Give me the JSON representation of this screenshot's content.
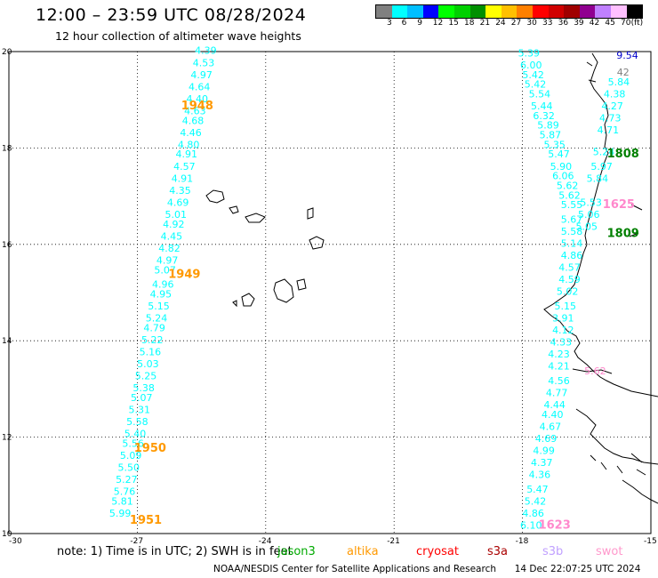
{
  "header": {
    "title": "12:00 – 23:59 UTC 08/28/2024",
    "subtitle": "12 hour collection of altimeter wave heights"
  },
  "legend": {
    "colors": [
      "#808080",
      "#00ffff",
      "#00bfff",
      "#0000ff",
      "#00ff00",
      "#00d000",
      "#009000",
      "#ffff00",
      "#ffc000",
      "#ff8000",
      "#ff0000",
      "#d00000",
      "#a00000",
      "#900090",
      "#c080ff",
      "#ffc0ff",
      "#000000"
    ],
    "labels": [
      "3",
      "6",
      "9",
      "12",
      "15",
      "18",
      "21",
      "24",
      "27",
      "30",
      "33",
      "36",
      "39",
      "42",
      "45",
      "70",
      "(ft)"
    ]
  },
  "axes": {
    "x_ticks": [
      "-30",
      "-27",
      "-24",
      "-21",
      "-18",
      "-15"
    ],
    "y_ticks": [
      "20",
      "18",
      "16",
      "14",
      "12",
      "10"
    ]
  },
  "map_data": {
    "lon_range": [
      -30,
      -15
    ],
    "lat_range": [
      10,
      20
    ],
    "tracks": [
      {
        "color": "#00ffff",
        "times": [
          {
            "label": "1948",
            "lon": -25.6,
            "lat": 18.8,
            "color": "#ff9900"
          },
          {
            "label": "1949",
            "lon": -25.9,
            "lat": 15.3,
            "color": "#ff9900"
          },
          {
            "label": "1950",
            "lon": -26.7,
            "lat": 11.7,
            "color": "#ff9900"
          },
          {
            "label": "1951",
            "lon": -26.8,
            "lat": 10.2,
            "color": "#ff9900"
          }
        ],
        "points": [
          {
            "v": "4.39",
            "lon": -25.4,
            "lat": 19.95
          },
          {
            "v": "4.53",
            "lon": -25.45,
            "lat": 19.7
          },
          {
            "v": "4.97",
            "lon": -25.5,
            "lat": 19.45
          },
          {
            "v": "4.64",
            "lon": -25.55,
            "lat": 19.2
          },
          {
            "v": "4.40",
            "lon": -25.6,
            "lat": 18.95
          },
          {
            "v": "4.63",
            "lon": -25.65,
            "lat": 18.7
          },
          {
            "v": "4.68",
            "lon": -25.7,
            "lat": 18.5
          },
          {
            "v": "4.46",
            "lon": -25.75,
            "lat": 18.25
          },
          {
            "v": "4.80",
            "lon": -25.8,
            "lat": 18.0
          },
          {
            "v": "4.91",
            "lon": -25.85,
            "lat": 17.8
          },
          {
            "v": "4.57",
            "lon": -25.9,
            "lat": 17.55
          },
          {
            "v": "4.91",
            "lon": -25.95,
            "lat": 17.3
          },
          {
            "v": "4.35",
            "lon": -26.0,
            "lat": 17.05
          },
          {
            "v": "4.69",
            "lon": -26.05,
            "lat": 16.8
          },
          {
            "v": "5.01",
            "lon": -26.1,
            "lat": 16.55
          },
          {
            "v": "4.92",
            "lon": -26.15,
            "lat": 16.35
          },
          {
            "v": "4.45",
            "lon": -26.2,
            "lat": 16.1
          },
          {
            "v": "4.82",
            "lon": -26.25,
            "lat": 15.85
          },
          {
            "v": "4.97",
            "lon": -26.3,
            "lat": 15.6
          },
          {
            "v": "5.07",
            "lon": -26.35,
            "lat": 15.4
          },
          {
            "v": "4.96",
            "lon": -26.4,
            "lat": 15.1
          },
          {
            "v": "4.95",
            "lon": -26.45,
            "lat": 14.9
          },
          {
            "v": "5.15",
            "lon": -26.5,
            "lat": 14.65
          },
          {
            "v": "5.24",
            "lon": -26.55,
            "lat": 14.4
          },
          {
            "v": "4.79",
            "lon": -26.6,
            "lat": 14.2
          },
          {
            "v": "5.22",
            "lon": -26.65,
            "lat": 13.95
          },
          {
            "v": "5.16",
            "lon": -26.7,
            "lat": 13.7
          },
          {
            "v": "5.03",
            "lon": -26.75,
            "lat": 13.45
          },
          {
            "v": "5.25",
            "lon": -26.8,
            "lat": 13.2
          },
          {
            "v": "5.38",
            "lon": -26.85,
            "lat": 12.95
          },
          {
            "v": "5.07",
            "lon": -26.9,
            "lat": 12.75
          },
          {
            "v": "5.31",
            "lon": -26.95,
            "lat": 12.5
          },
          {
            "v": "5.58",
            "lon": -27.0,
            "lat": 12.25
          },
          {
            "v": "5.40",
            "lon": -27.05,
            "lat": 12.0
          },
          {
            "v": "5.56",
            "lon": -27.1,
            "lat": 11.8
          },
          {
            "v": "5.09",
            "lon": -27.15,
            "lat": 11.55
          },
          {
            "v": "5.50",
            "lon": -27.2,
            "lat": 11.3
          },
          {
            "v": "5.27",
            "lon": -27.25,
            "lat": 11.05
          },
          {
            "v": "5.76",
            "lon": -27.3,
            "lat": 10.8
          },
          {
            "v": "5.81",
            "lon": -27.35,
            "lat": 10.6
          },
          {
            "v": "5.99",
            "lon": -27.4,
            "lat": 10.35
          }
        ]
      },
      {
        "color": "#00ffff",
        "times": [
          {
            "label": "1808",
            "lon": -15.65,
            "lat": 17.8,
            "color": "#008000"
          },
          {
            "label": "1809",
            "lon": -15.65,
            "lat": 16.15,
            "color": "#008000"
          }
        ],
        "points": [
          {
            "v": "9.54",
            "lon": -15.55,
            "lat": 19.85,
            "color": "#0000cc"
          },
          {
            "v": "42",
            "lon": -15.65,
            "lat": 19.5,
            "color": "#808080"
          },
          {
            "v": "5.84",
            "lon": -15.75,
            "lat": 19.3
          },
          {
            "v": "4.38",
            "lon": -15.85,
            "lat": 19.05
          },
          {
            "v": "4.27",
            "lon": -15.9,
            "lat": 18.8
          },
          {
            "v": "4.73",
            "lon": -15.95,
            "lat": 18.55
          },
          {
            "v": "4.71",
            "lon": -16.0,
            "lat": 18.3
          },
          {
            "v": "5.24",
            "lon": -16.1,
            "lat": 17.85
          },
          {
            "v": "5.97",
            "lon": -16.15,
            "lat": 17.55
          },
          {
            "v": "5.84",
            "lon": -16.25,
            "lat": 17.3
          },
          {
            "v": "5.53",
            "lon": -16.4,
            "lat": 16.8
          },
          {
            "v": "5.06",
            "lon": -16.45,
            "lat": 16.55
          },
          {
            "v": "5.05",
            "lon": -16.5,
            "lat": 16.3
          },
          {
            "v": "5.39",
            "lon": -17.85,
            "lat": 19.9
          },
          {
            "v": "6.00",
            "lon": -17.8,
            "lat": 19.65
          },
          {
            "v": "5.42",
            "lon": -17.75,
            "lat": 19.45
          },
          {
            "v": "5.42",
            "lon": -17.7,
            "lat": 19.25
          },
          {
            "v": "5.54",
            "lon": -17.6,
            "lat": 19.05
          },
          {
            "v": "5.44",
            "lon": -17.55,
            "lat": 18.8
          },
          {
            "v": "6.32",
            "lon": -17.5,
            "lat": 18.6
          },
          {
            "v": "5.89",
            "lon": -17.4,
            "lat": 18.4
          },
          {
            "v": "5.87",
            "lon": -17.35,
            "lat": 18.2
          },
          {
            "v": "5.35",
            "lon": -17.25,
            "lat": 18.0
          },
          {
            "v": "5.47",
            "lon": -17.15,
            "lat": 17.8
          },
          {
            "v": "5.90",
            "lon": -17.1,
            "lat": 17.55
          },
          {
            "v": "6.06",
            "lon": -17.05,
            "lat": 17.35
          },
          {
            "v": "5.62",
            "lon": -16.95,
            "lat": 17.15
          },
          {
            "v": "5.62",
            "lon": -16.9,
            "lat": 16.95
          },
          {
            "v": "5.55",
            "lon": -16.85,
            "lat": 16.75
          },
          {
            "v": "5.67",
            "lon": -16.85,
            "lat": 16.45
          },
          {
            "v": "5.58",
            "lon": -16.85,
            "lat": 16.2
          },
          {
            "v": "5.14",
            "lon": -16.85,
            "lat": 15.95
          },
          {
            "v": "4.86",
            "lon": -16.85,
            "lat": 15.7
          },
          {
            "v": "4.57",
            "lon": -16.9,
            "lat": 15.45
          },
          {
            "v": "4.59",
            "lon": -16.9,
            "lat": 15.2
          },
          {
            "v": "5.02",
            "lon": -16.95,
            "lat": 14.95
          },
          {
            "v": "5.15",
            "lon": -17.0,
            "lat": 14.65
          },
          {
            "v": "3.91",
            "lon": -17.05,
            "lat": 14.4
          },
          {
            "v": "4.12",
            "lon": -17.05,
            "lat": 14.15
          },
          {
            "v": "4.33",
            "lon": -17.1,
            "lat": 13.9
          },
          {
            "v": "4.23",
            "lon": -17.15,
            "lat": 13.65
          },
          {
            "v": "4.21",
            "lon": -17.15,
            "lat": 13.4
          },
          {
            "v": "4.56",
            "lon": -17.15,
            "lat": 13.1
          },
          {
            "v": "4.77",
            "lon": -17.2,
            "lat": 12.85
          },
          {
            "v": "4.44",
            "lon": -17.25,
            "lat": 12.6
          },
          {
            "v": "4.40",
            "lon": -17.3,
            "lat": 12.4
          },
          {
            "v": "4.67",
            "lon": -17.35,
            "lat": 12.15
          },
          {
            "v": "4.69",
            "lon": -17.45,
            "lat": 11.9
          },
          {
            "v": "4.99",
            "lon": -17.5,
            "lat": 11.65
          },
          {
            "v": "4.37",
            "lon": -17.55,
            "lat": 11.4
          },
          {
            "v": "4.36",
            "lon": -17.6,
            "lat": 11.15
          },
          {
            "v": "5.47",
            "lon": -17.65,
            "lat": 10.85
          },
          {
            "v": "5.42",
            "lon": -17.7,
            "lat": 10.6
          },
          {
            "v": "4.86",
            "lon": -17.75,
            "lat": 10.35
          },
          {
            "v": "6.10",
            "lon": -17.8,
            "lat": 10.1
          }
        ]
      },
      {
        "color": "#ff99cc",
        "times": [
          {
            "label": "1625",
            "lon": -15.75,
            "lat": 16.75,
            "color": "#ff88cc"
          },
          {
            "label": "1623",
            "lon": -17.25,
            "lat": 10.1,
            "color": "#ff88cc"
          }
        ],
        "points": [
          {
            "v": "5.62",
            "lon": -16.3,
            "lat": 13.3,
            "color": "#ff88cc"
          }
        ]
      }
    ]
  },
  "footer": {
    "note": "note:  1) Time is in UTC;  2) SWH is in feet",
    "satellites": [
      {
        "name": "jason3",
        "color": "#00aa00"
      },
      {
        "name": "altika",
        "color": "#ff9900"
      },
      {
        "name": "cryosat",
        "color": "#ff0000"
      },
      {
        "name": "s3a",
        "color": "#aa0000"
      },
      {
        "name": "s3b",
        "color": "#c0a0ff"
      },
      {
        "name": "swot",
        "color": "#ff99cc"
      }
    ],
    "credit": "NOAA/NESDIS Center for Satellite Applications and Research",
    "timestamp": "14 Dec 22:07:25 UTC 2024"
  }
}
